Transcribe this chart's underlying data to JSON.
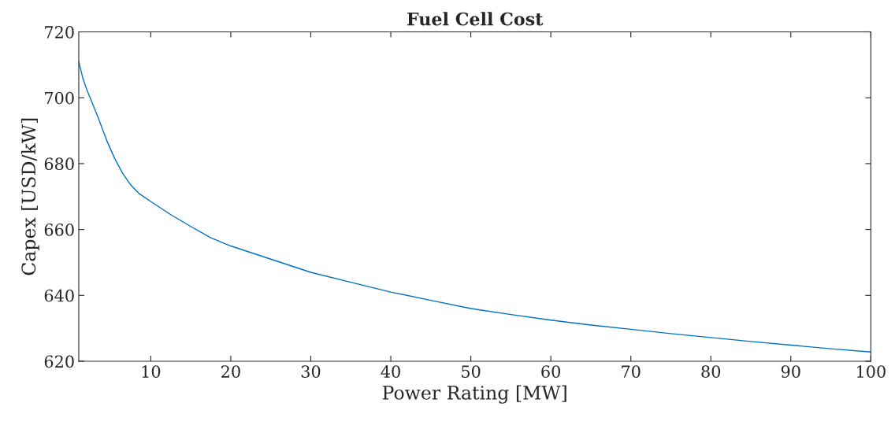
{
  "chart_data": {
    "type": "line",
    "title": "Fuel Cell Cost",
    "xlabel": "Power Rating [MW]",
    "ylabel": "Capex [USD/kW]",
    "x": [
      1,
      1.5,
      2,
      2.5,
      3,
      3.5,
      4.5,
      5.5,
      6.5,
      7.5,
      8.5,
      10,
      12.5,
      15.3,
      17.5,
      20,
      25,
      30,
      35,
      40,
      45,
      50,
      55,
      60,
      65,
      70,
      75,
      80,
      85,
      90,
      95,
      100
    ],
    "series": [
      {
        "color": "#0072bd",
        "values": [
          711,
          706,
          702.5,
          699.5,
          696.5,
          693.5,
          687,
          681.5,
          677,
          673.5,
          671,
          668.5,
          664.5,
          660.5,
          657.5,
          655,
          651,
          647,
          644,
          641,
          638.5,
          636,
          634.2,
          632.5,
          631,
          629.7,
          628.4,
          627.2,
          626,
          624.9,
          623.8,
          622.8
        ]
      }
    ],
    "xlim": [
      1,
      100
    ],
    "xticks": [
      10,
      20,
      30,
      40,
      50,
      60,
      70,
      80,
      90,
      100
    ],
    "ylim": [
      620,
      720
    ],
    "yticks": [
      620,
      640,
      660,
      680,
      700,
      720
    ],
    "grid": false,
    "legend": false,
    "marker": "none",
    "line_style": "solid"
  }
}
